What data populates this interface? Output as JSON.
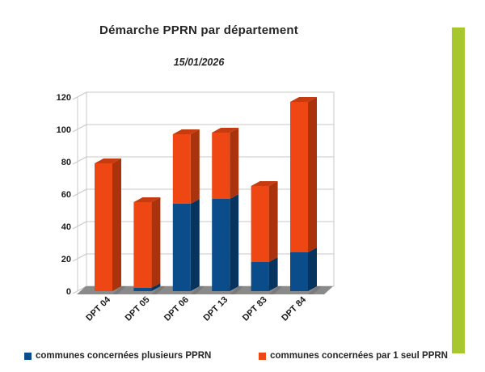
{
  "header": {
    "title": "Démarche PPRN par département",
    "subtitle": "15/01/2026"
  },
  "chart_data": {
    "type": "bar",
    "stacked": true,
    "style": "3d",
    "title": "Démarche PPRN par département",
    "subtitle": "15/01/2026",
    "categories": [
      "DPT 04",
      "DPT 05",
      "DPT 06",
      "DPT 13",
      "DPT 83",
      "DPT 84"
    ],
    "series": [
      {
        "name": "communes concernées plusieurs PPRN",
        "color": "#0b4d8b",
        "color_side": "#07335f",
        "color_top": "#0a4078",
        "values": [
          0,
          2,
          54,
          57,
          18,
          24
        ]
      },
      {
        "name": "communes concernées par 1 seul PPRN",
        "color": "#ee4713",
        "color_side": "#aa330d",
        "color_top": "#c43c0f",
        "values": [
          79,
          53,
          43,
          41,
          47,
          93
        ]
      }
    ],
    "totals": [
      79,
      55,
      97,
      98,
      65,
      117
    ],
    "xlabel": "",
    "ylabel": "",
    "ylim": [
      0,
      120
    ],
    "ytick_step": 20,
    "yticks": [
      0,
      20,
      40,
      60,
      80,
      100,
      120
    ],
    "grid": true,
    "legend_position": "bottom",
    "wall_color": "#ffffff",
    "grid_color": "#c8c8c8",
    "floor_color": "#8a8a8a",
    "shadow_color": "#6e6e6e",
    "tick_label_color": "#1a1a1a"
  },
  "decoration": {
    "green_strip_color": "#a8c72f"
  }
}
